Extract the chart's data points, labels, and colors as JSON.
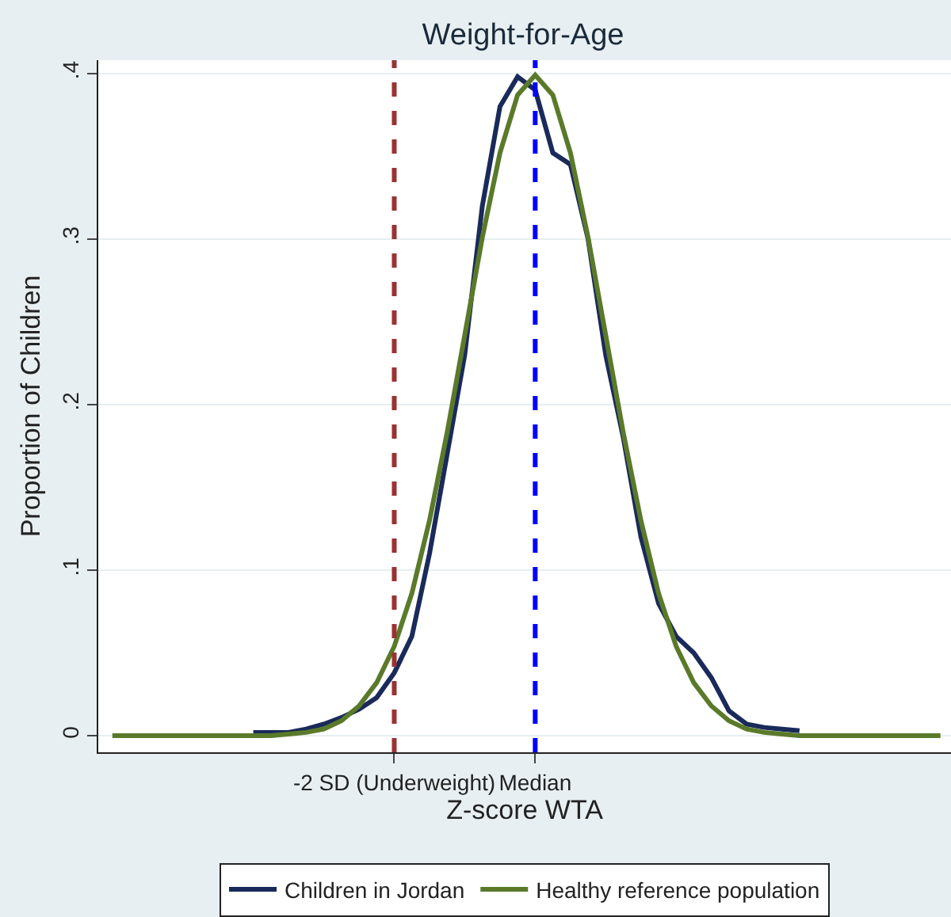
{
  "chart_data": {
    "type": "line",
    "title": "Weight-for-Age",
    "xlabel": "Z-score WTA",
    "ylabel": "Proportion of Children",
    "categories": [
      null,
      null,
      null,
      null,
      null,
      null,
      null,
      null,
      null,
      null,
      null,
      null,
      null,
      null,
      null,
      null,
      "-2 SD (Underweight)",
      null,
      null,
      null,
      null,
      null,
      null,
      null,
      "Median",
      null,
      null,
      null,
      null,
      null,
      null,
      null,
      null,
      null,
      null,
      null,
      null,
      null,
      null,
      null,
      null,
      null,
      null,
      null,
      null,
      null,
      null,
      null
    ],
    "ylim": [
      -0.01,
      0.408
    ],
    "yticks": [
      0,
      {
        "value": 0.1,
        "label": ".1"
      },
      {
        "value": 0.2,
        "label": ".2"
      },
      {
        "value": 0.3,
        "label": ".3"
      },
      {
        "value": 0.4,
        "label": ".4"
      }
    ],
    "grid": "y",
    "legend": "bottom",
    "marker": "none",
    "line_style": "solid",
    "series": [
      {
        "name": "Children in Jordan",
        "color": "#1a2a5a",
        "values": [
          null,
          null,
          null,
          null,
          null,
          null,
          null,
          null,
          0.002,
          0.002,
          0.002,
          0.004,
          0.007,
          0.011,
          0.016,
          0.023,
          0.038,
          0.06,
          0.11,
          0.17,
          0.23,
          0.32,
          0.38,
          0.398,
          0.39,
          0.352,
          0.345,
          0.3,
          0.23,
          0.18,
          0.12,
          0.08,
          0.06,
          0.05,
          0.035,
          0.015,
          0.007,
          0.005,
          0.004,
          0.003,
          null,
          null,
          null,
          null,
          null,
          null,
          null,
          null
        ]
      },
      {
        "name": "Healthy reference population",
        "color": "#5a7a2a",
        "values": [
          0,
          0,
          0,
          0,
          0,
          0,
          0,
          0,
          0,
          0,
          0.001,
          0.002,
          0.004,
          0.009,
          0.018,
          0.032,
          0.054,
          0.086,
          0.13,
          0.183,
          0.242,
          0.301,
          0.352,
          0.387,
          0.399,
          0.387,
          0.352,
          0.301,
          0.242,
          0.183,
          0.13,
          0.086,
          0.054,
          0.032,
          0.018,
          0.009,
          0.004,
          0.002,
          0.001,
          0,
          0,
          0,
          0,
          0,
          0,
          0,
          0,
          0
        ]
      }
    ],
    "ref_lines": [
      {
        "axis": "x",
        "value": "-2 SD (Underweight)",
        "color": "#993333",
        "line_style": "dashed"
      },
      {
        "axis": "x",
        "value": "Median",
        "color": "#0000ff",
        "line_style": "dashed"
      }
    ]
  }
}
